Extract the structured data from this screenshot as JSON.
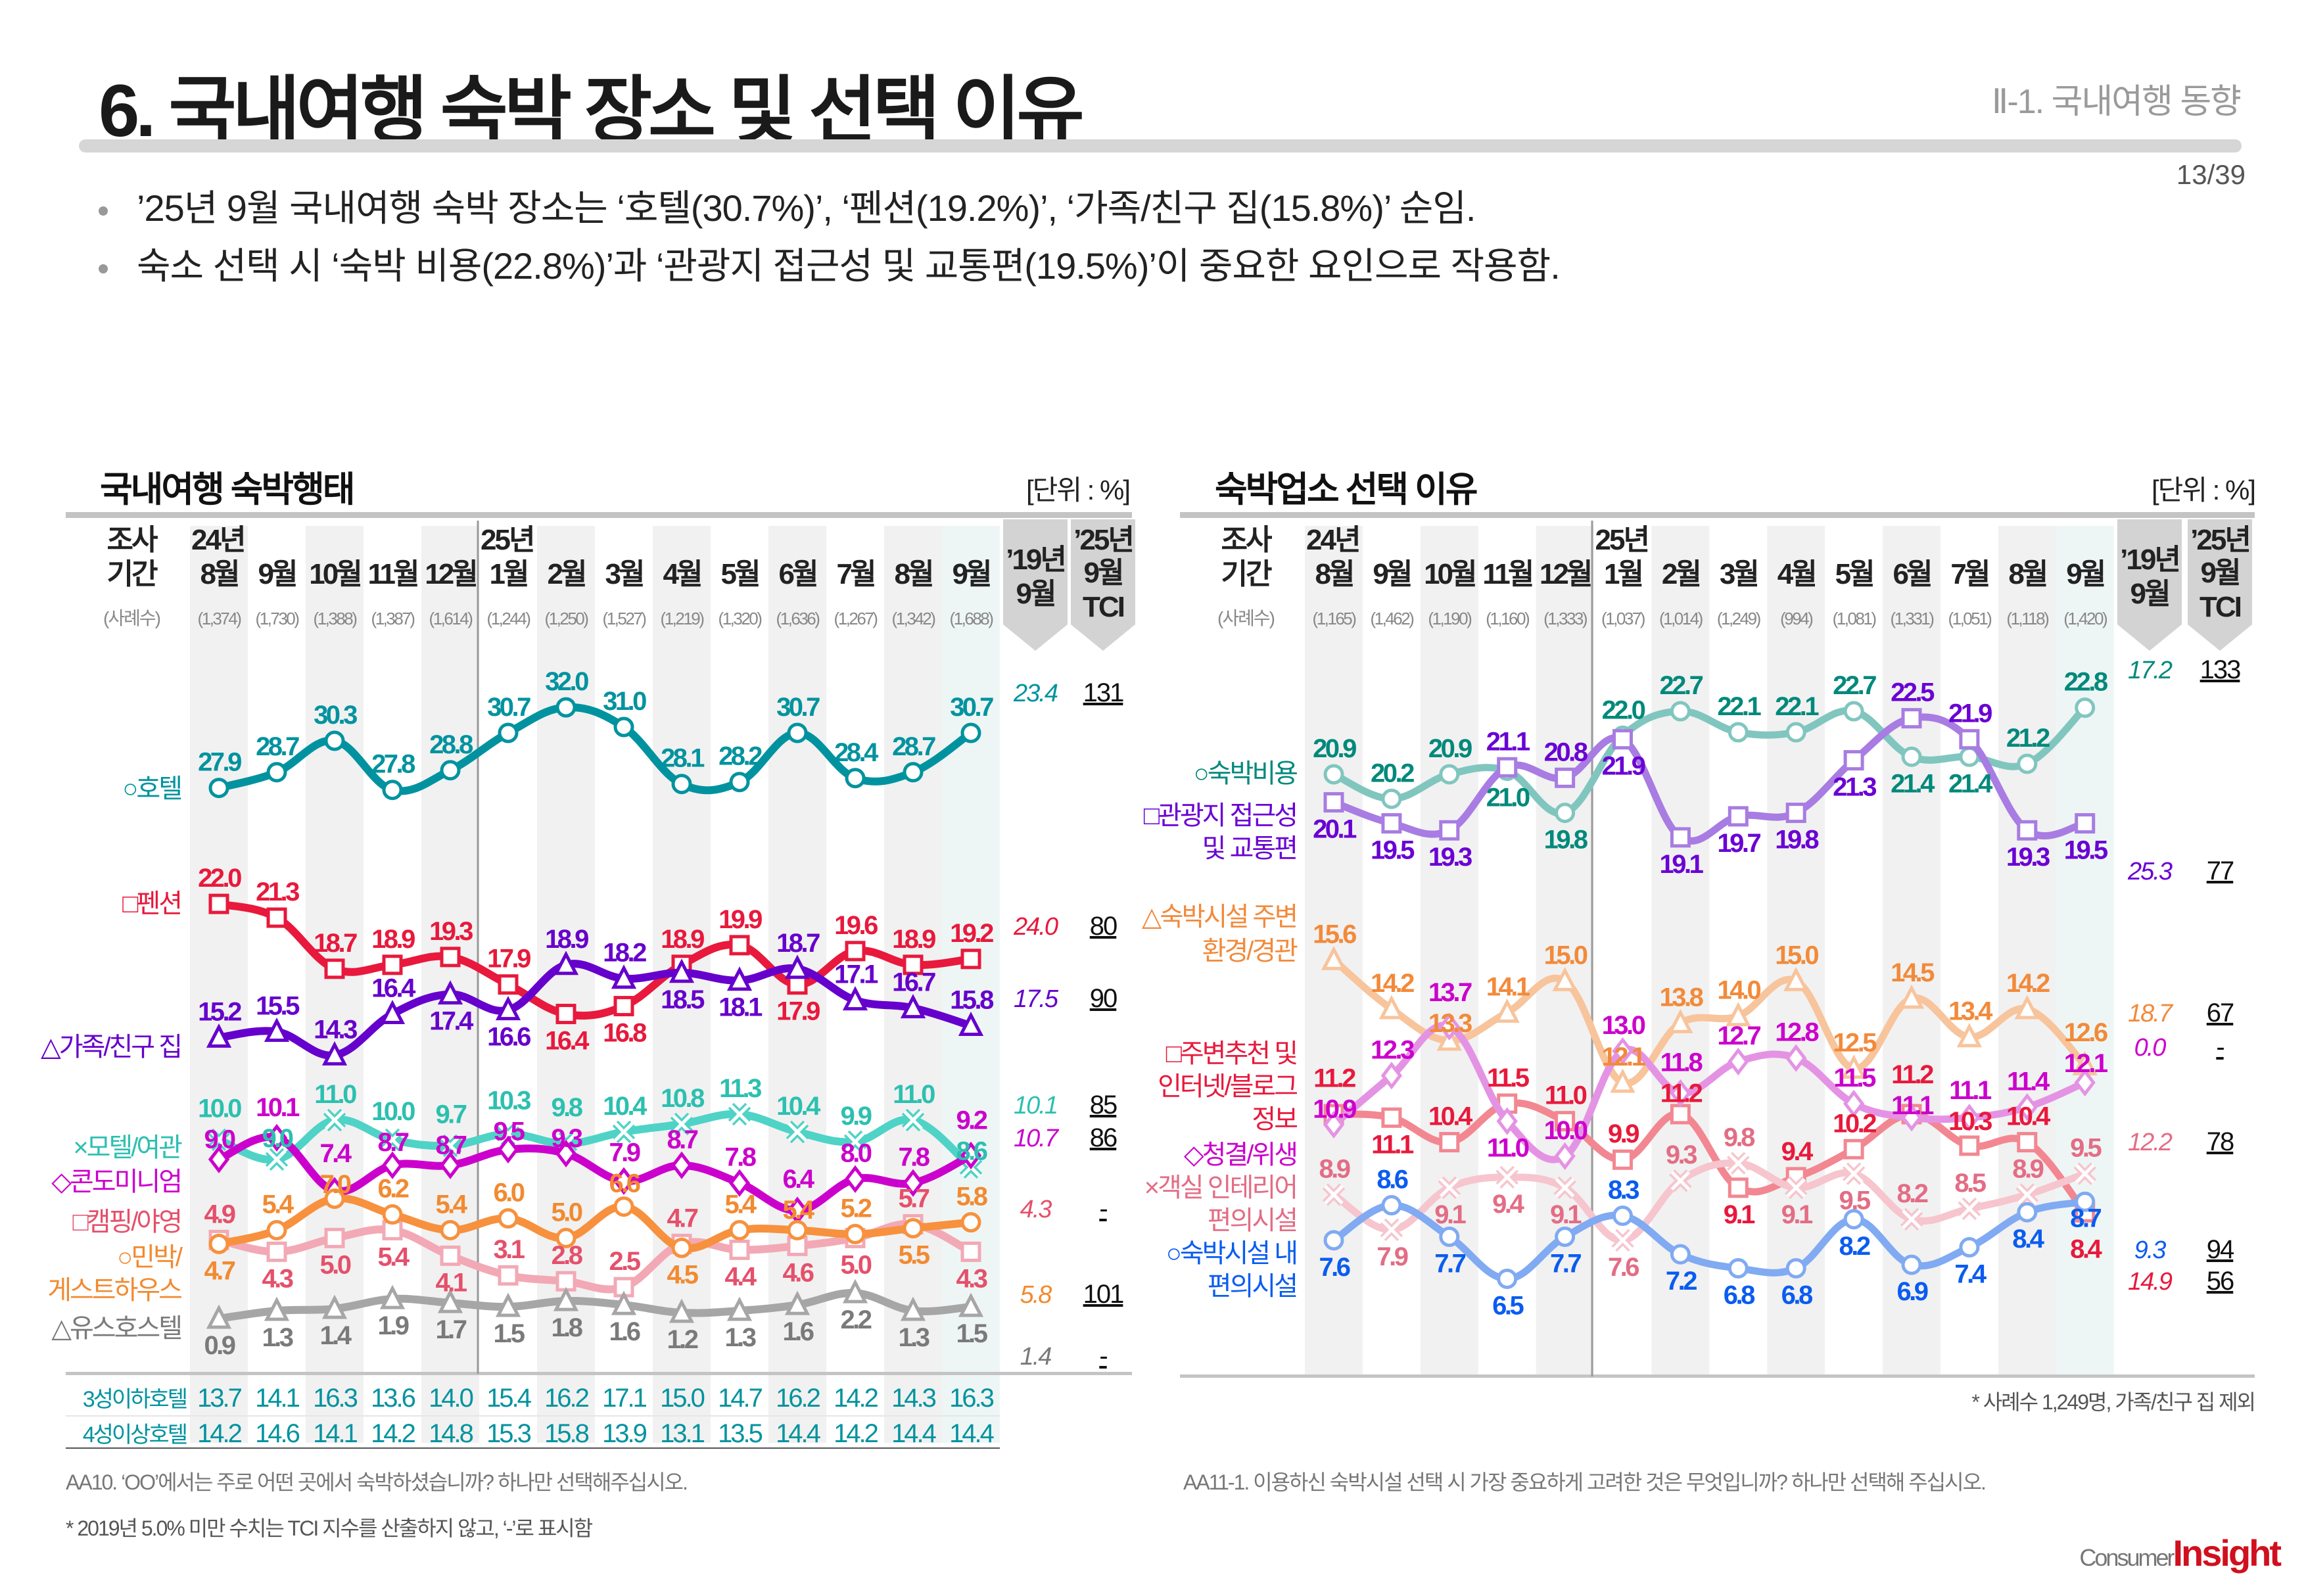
{
  "header": {
    "title": "6. 국내여행 숙박 장소 및 선택 이유",
    "section": "Ⅱ-1. 국내여행 동향",
    "page": "13/39"
  },
  "bullets": [
    "’25년 9월 국내여행 숙박 장소는 ‘호텔(30.7%)’, ‘펜션(19.2%)’, ‘가족/친구 집(15.8%)’ 순임.",
    "숙소 선택 시 ‘숙박 비용(22.8%)’과 ‘관광지 접근성 및 교통편(19.5%)’이 중요한 요인으로 작용함."
  ],
  "table_header": {
    "period_lines": [
      "조사",
      "기간"
    ],
    "sample_label": "(사례수)",
    "year_labels": [
      "24년",
      "25년"
    ],
    "col2019": [
      "’19년",
      "9월"
    ],
    "colTCI": [
      "’25년",
      "9월",
      "TCI"
    ]
  },
  "footer": {
    "left_question": "AA10. ‘OO’에서는 주로 어떤 곳에서 숙박하셨습니까? 하나만 선택해주십시오.",
    "left_note": "* 2019년 5.0% 미만 수치는 TCI 지수를 산출하지 않고, ‘-’로 표시함",
    "right_question": "AA11-1. 이용하신 숙박시설 선택 시 가장 중요하게 고려한 것은 무엇입니까? 하나만 선택해 주십시오.",
    "logo": "ConsumerInsight",
    "logo_parts": [
      "Consumer",
      "Insight"
    ]
  },
  "chart_data": [
    {
      "type": "line",
      "title": "국내여행 숙박행태",
      "unit": "[단위 : %]",
      "categories": [
        "8월",
        "9월",
        "10월",
        "11월",
        "12월",
        "1월",
        "2월",
        "3월",
        "4월",
        "5월",
        "6월",
        "7월",
        "8월",
        "9월"
      ],
      "sample_sizes": [
        "(1,374)",
        "(1,730)",
        "(1,388)",
        "(1,387)",
        "(1,614)",
        "(1,244)",
        "(1,250)",
        "(1,527)",
        "(1,219)",
        "(1,320)",
        "(1,636)",
        "(1,267)",
        "(1,342)",
        "(1,688)"
      ],
      "series": [
        {
          "legend": [
            "○호텔"
          ],
          "marker": "circle",
          "color": "#00939f",
          "label_color": "#00939f",
          "values": [
            27.9,
            28.7,
            30.3,
            27.8,
            28.8,
            30.7,
            32.0,
            31.0,
            28.1,
            28.2,
            30.7,
            28.4,
            28.7,
            30.7
          ],
          "y2019": "23.4",
          "tci": "131"
        },
        {
          "legend": [
            "□펜션"
          ],
          "marker": "square",
          "color": "#e8193c",
          "label_color": "#e8193c",
          "values": [
            22.0,
            21.3,
            18.7,
            18.9,
            19.3,
            17.9,
            16.4,
            16.8,
            18.9,
            19.9,
            17.9,
            19.6,
            18.9,
            19.2
          ],
          "y2019": "24.0",
          "tci": "80"
        },
        {
          "legend": [
            "△가족/친구 집"
          ],
          "marker": "triangle",
          "color": "#6600cc",
          "label_color": "#6600cc",
          "values": [
            15.2,
            15.5,
            14.3,
            16.4,
            17.4,
            16.6,
            18.9,
            18.2,
            18.5,
            18.1,
            18.7,
            17.1,
            16.7,
            15.8
          ],
          "y2019": "17.5",
          "tci": "90"
        },
        {
          "legend": [
            "×모텔/여관"
          ],
          "marker": "x",
          "color": "#4fd3c6",
          "label_color": "#2cc0b0",
          "values": [
            10.0,
            9.0,
            11.0,
            10.0,
            9.7,
            10.3,
            9.8,
            10.4,
            10.8,
            11.3,
            10.4,
            9.9,
            11.0,
            8.6
          ],
          "y2019": "10.1",
          "tci": "85"
        },
        {
          "legend": [
            "◇콘도미니엄"
          ],
          "marker": "diamond",
          "color": "#cc00cc",
          "label_color": "#cc00cc",
          "values": [
            9.0,
            10.1,
            7.4,
            8.7,
            8.7,
            9.5,
            9.3,
            7.9,
            8.7,
            7.8,
            6.4,
            8.0,
            7.8,
            9.2
          ],
          "y2019": "10.7",
          "tci": "86"
        },
        {
          "legend": [
            "□캠핑/야영"
          ],
          "marker": "square",
          "color": "#f2a9b5",
          "label_color": "#e5506b",
          "values": [
            4.9,
            4.3,
            5.0,
            5.4,
            4.1,
            3.1,
            2.8,
            2.5,
            4.7,
            4.4,
            4.6,
            5.0,
            5.7,
            4.3
          ],
          "y2019": "4.3",
          "tci": "-"
        },
        {
          "legend": [
            "○민박/",
            "게스트하우스"
          ],
          "marker": "circle",
          "color": "#f7913d",
          "label_color": "#f28a30",
          "values": [
            4.7,
            5.4,
            7.0,
            6.2,
            5.4,
            6.0,
            5.0,
            6.6,
            4.5,
            5.4,
            5.4,
            5.2,
            5.5,
            5.8
          ],
          "y2019": "5.8",
          "tci": "101"
        },
        {
          "legend": [
            "△유스호스텔"
          ],
          "marker": "triangle",
          "color": "#a6a6a6",
          "label_color": "#7a7a7a",
          "values": [
            0.9,
            1.3,
            1.4,
            1.9,
            1.7,
            1.5,
            1.8,
            1.6,
            1.2,
            1.3,
            1.6,
            2.2,
            1.3,
            1.5
          ],
          "y2019": "1.4",
          "tci": "-"
        }
      ],
      "table_rows": [
        {
          "label": "3성이하호텔",
          "values": [
            "13.7",
            "14.1",
            "16.3",
            "13.6",
            "14.0",
            "15.4",
            "16.2",
            "17.1",
            "15.0",
            "14.7",
            "16.2",
            "14.2",
            "14.3",
            "16.3"
          ]
        },
        {
          "label": "4성이상호텔",
          "values": [
            "14.2",
            "14.6",
            "14.1",
            "14.2",
            "14.8",
            "15.3",
            "15.8",
            "13.9",
            "13.1",
            "13.5",
            "14.4",
            "14.2",
            "14.4",
            "14.4"
          ]
        }
      ]
    },
    {
      "type": "line",
      "title": "숙박업소 선택 이유",
      "unit": "[단위 : %]",
      "note": "* 사례수 1,249명, 가족/친구 집 제외",
      "categories": [
        "8월",
        "9월",
        "10월",
        "11월",
        "12월",
        "1월",
        "2월",
        "3월",
        "4월",
        "5월",
        "6월",
        "7월",
        "8월",
        "9월"
      ],
      "sample_sizes": [
        "(1,165)",
        "(1,462)",
        "(1,190)",
        "(1,160)",
        "(1,333)",
        "(1,037)",
        "(1,014)",
        "(1,249)",
        "(994)",
        "(1,081)",
        "(1,331)",
        "(1,051)",
        "(1,118)",
        "(1,420)"
      ],
      "series": [
        {
          "legend": [
            "○숙박비용"
          ],
          "marker": "circle",
          "color": "#80c6bf",
          "label_color": "#00897b",
          "values": [
            20.9,
            20.2,
            20.9,
            21.0,
            19.8,
            22.0,
            22.7,
            22.1,
            22.1,
            22.7,
            21.4,
            21.4,
            21.2,
            22.8
          ],
          "y2019": "17.2",
          "tci": "133"
        },
        {
          "legend": [
            "□관광지 접근성",
            "및 교통편"
          ],
          "marker": "square",
          "color": "#a87ce2",
          "label_color": "#6a00d4",
          "values": [
            20.1,
            19.5,
            19.3,
            21.1,
            20.8,
            21.9,
            19.1,
            19.7,
            19.8,
            21.3,
            22.5,
            21.9,
            19.3,
            19.5
          ],
          "y2019": "25.3",
          "tci": "77"
        },
        {
          "legend": [
            "△숙박시설 주변",
            "환경/경관"
          ],
          "marker": "triangle",
          "color": "#f8c49c",
          "label_color": "#f28a3a",
          "values": [
            15.6,
            14.2,
            13.3,
            14.1,
            15.0,
            12.1,
            13.8,
            14.0,
            15.0,
            12.5,
            14.5,
            13.4,
            14.2,
            12.6
          ],
          "y2019": "18.7",
          "tci": "67"
        },
        {
          "legend": [
            "□주변추천 및",
            "인터넷/블로그",
            "정보"
          ],
          "marker": "square",
          "color": "#f28791",
          "label_color": "#e8193c",
          "values": [
            11.2,
            11.1,
            10.4,
            11.5,
            11.0,
            9.9,
            11.2,
            9.1,
            9.4,
            10.2,
            11.2,
            10.3,
            10.4,
            8.4
          ],
          "y2019": "14.9",
          "tci": "56"
        },
        {
          "legend": [
            "◇청결/위생"
          ],
          "marker": "diamond",
          "color": "#e493e4",
          "label_color": "#cc00cc",
          "values": [
            10.9,
            12.3,
            13.7,
            11.0,
            10.0,
            13.0,
            11.8,
            12.7,
            12.8,
            11.5,
            11.1,
            11.1,
            11.4,
            12.1
          ],
          "y2019": "0.0",
          "tci": "-"
        },
        {
          "legend": [
            "×객실 인테리어",
            "편의시설"
          ],
          "marker": "x",
          "color": "#f6c5cd",
          "label_color": "#e36d85",
          "values": [
            8.9,
            7.9,
            9.1,
            9.4,
            9.1,
            7.6,
            9.3,
            9.8,
            9.1,
            9.5,
            8.2,
            8.5,
            8.9,
            9.5
          ],
          "y2019": "12.2",
          "tci": "78"
        },
        {
          "legend": [
            "○숙박시설 내",
            "편의시설"
          ],
          "marker": "circle",
          "color": "#80aaf2",
          "label_color": "#0a5cf0",
          "values": [
            7.6,
            8.6,
            7.7,
            6.5,
            7.7,
            8.3,
            7.2,
            6.8,
            6.8,
            8.2,
            6.9,
            7.4,
            8.4,
            8.7
          ],
          "y2019": "9.3",
          "tci": "94"
        }
      ]
    }
  ]
}
